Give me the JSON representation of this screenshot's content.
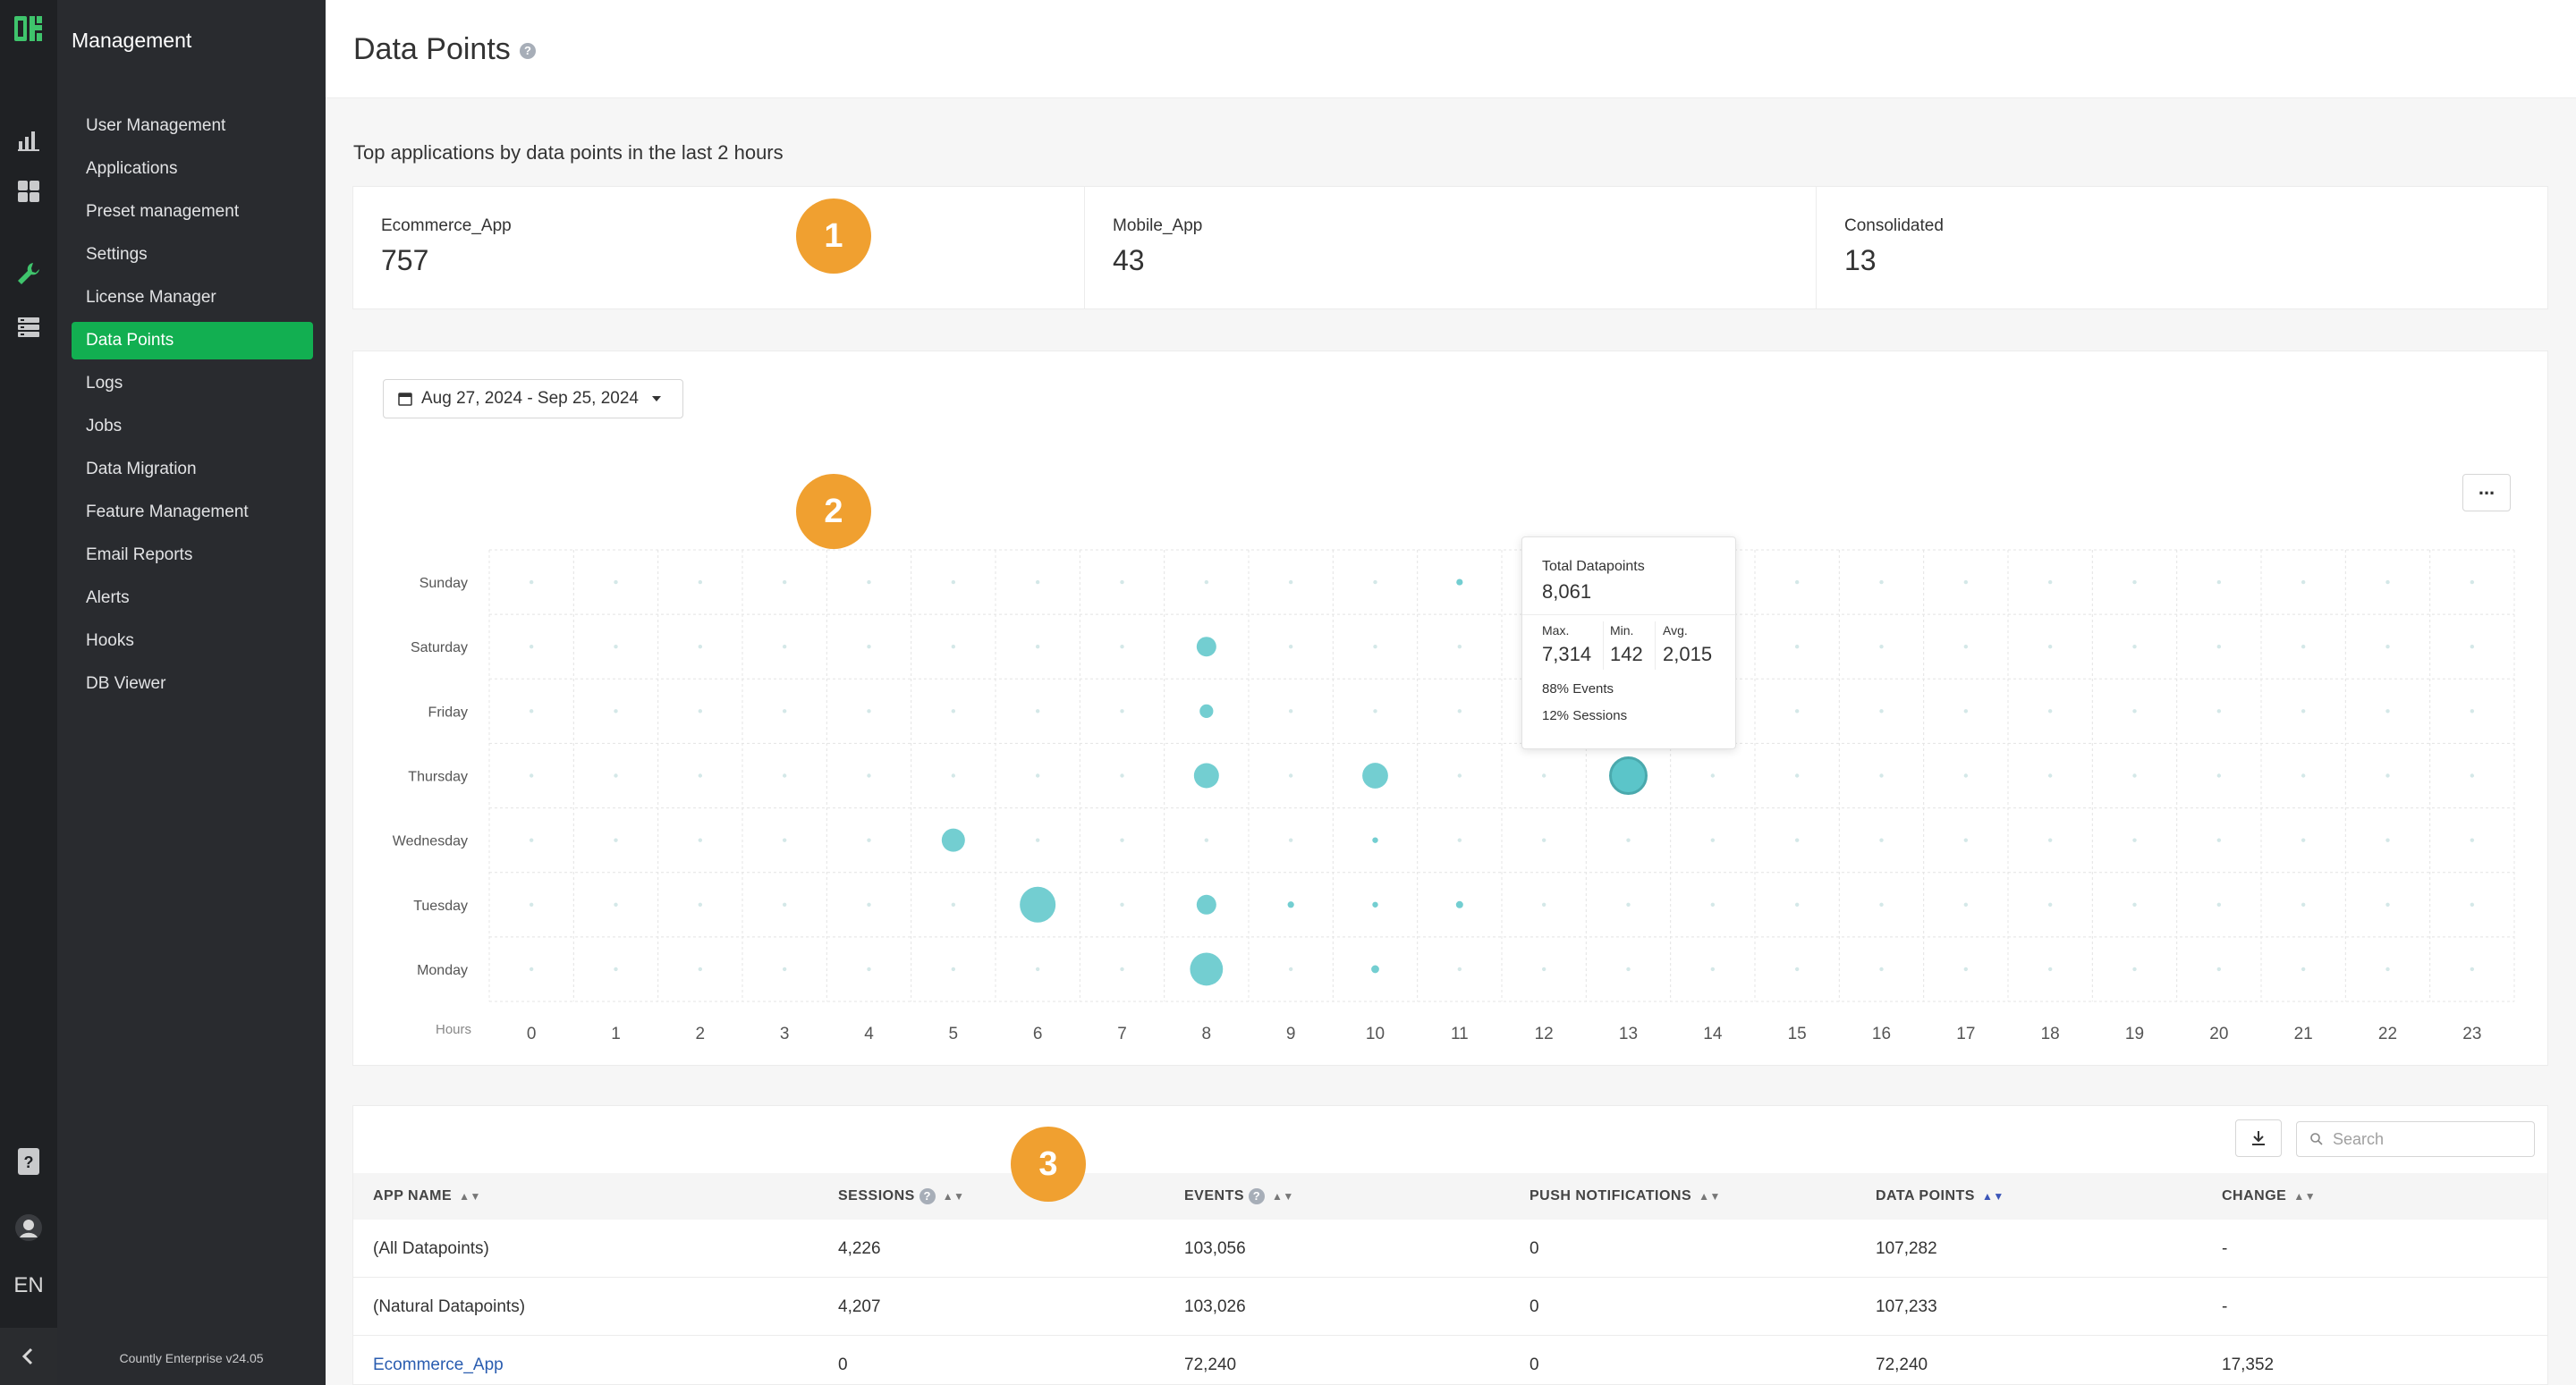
{
  "sidebar": {
    "title": "Management",
    "items": [
      {
        "label": "User Management",
        "active": false
      },
      {
        "label": "Applications",
        "active": false
      },
      {
        "label": "Preset management",
        "active": false
      },
      {
        "label": "Settings",
        "active": false
      },
      {
        "label": "License Manager",
        "active": false
      },
      {
        "label": "Data Points",
        "active": true
      },
      {
        "label": "Logs",
        "active": false
      },
      {
        "label": "Jobs",
        "active": false
      },
      {
        "label": "Data Migration",
        "active": false
      },
      {
        "label": "Feature Management",
        "active": false
      },
      {
        "label": "Email Reports",
        "active": false
      },
      {
        "label": "Alerts",
        "active": false
      },
      {
        "label": "Hooks",
        "active": false
      },
      {
        "label": "DB Viewer",
        "active": false
      }
    ],
    "version": "Countly Enterprise v24.05"
  },
  "rail": {
    "language": "EN",
    "icons": [
      "countly-logo-icon",
      "analytics-icon",
      "dashboards-icon",
      "management-wrench-icon",
      "data-manager-icon",
      "help-book-icon",
      "user-avatar-icon",
      "collapse-chevron-icon"
    ]
  },
  "header": {
    "title": "Data Points"
  },
  "top_apps": {
    "subtitle": "Top applications by data points in the last 2 hours",
    "cards": [
      {
        "label": "Ecommerce_App",
        "value": "757"
      },
      {
        "label": "Mobile_App",
        "value": "43"
      },
      {
        "label": "Consolidated",
        "value": "13"
      }
    ]
  },
  "badges": [
    "1",
    "2",
    "3"
  ],
  "date_range": {
    "label": "Aug 27, 2024 - Sep 25, 2024"
  },
  "chart_data": {
    "type": "scatter",
    "subtype": "punchcard",
    "x_label": "Hours",
    "x_categories": [
      "0",
      "1",
      "2",
      "3",
      "4",
      "5",
      "6",
      "7",
      "8",
      "9",
      "10",
      "11",
      "12",
      "13",
      "14",
      "15",
      "16",
      "17",
      "18",
      "19",
      "20",
      "21",
      "22",
      "23"
    ],
    "y_categories": [
      "Sunday",
      "Saturday",
      "Friday",
      "Thursday",
      "Wednesday",
      "Tuesday",
      "Monday"
    ],
    "bubble_color": "#5bc5c9",
    "points": [
      {
        "day": "Sunday",
        "hour": 11,
        "size": 0.18
      },
      {
        "day": "Saturday",
        "hour": 8,
        "size": 0.55
      },
      {
        "day": "Friday",
        "hour": 8,
        "size": 0.38
      },
      {
        "day": "Thursday",
        "hour": 8,
        "size": 0.7
      },
      {
        "day": "Thursday",
        "hour": 10,
        "size": 0.72
      },
      {
        "day": "Thursday",
        "hour": 13,
        "size": 1.0
      },
      {
        "day": "Wednesday",
        "hour": 5,
        "size": 0.65
      },
      {
        "day": "Wednesday",
        "hour": 10,
        "size": 0.16
      },
      {
        "day": "Tuesday",
        "hour": 6,
        "size": 1.0
      },
      {
        "day": "Tuesday",
        "hour": 8,
        "size": 0.55
      },
      {
        "day": "Tuesday",
        "hour": 9,
        "size": 0.18
      },
      {
        "day": "Tuesday",
        "hour": 10,
        "size": 0.16
      },
      {
        "day": "Tuesday",
        "hour": 11,
        "size": 0.2
      },
      {
        "day": "Monday",
        "hour": 8,
        "size": 0.92
      },
      {
        "day": "Monday",
        "hour": 10,
        "size": 0.22
      }
    ],
    "tooltip": {
      "day": "Thursday",
      "hour": 13,
      "title": "Total Datapoints",
      "total": "8,061",
      "max_label": "Max.",
      "max": "7,314",
      "min_label": "Min.",
      "min": "142",
      "avg_label": "Avg.",
      "avg": "2,015",
      "events_pct": "88%",
      "events_label": "Events",
      "sessions_pct": "12%",
      "sessions_label": "Sessions"
    }
  },
  "table": {
    "search_placeholder": "Search",
    "columns": [
      "APP NAME",
      "SESSIONS",
      "EVENTS",
      "PUSH NOTIFICATIONS",
      "DATA POINTS",
      "CHANGE"
    ],
    "rows": [
      {
        "app": "(All Datapoints)",
        "sessions": "4,226",
        "events": "103,056",
        "push": "0",
        "data_points": "107,282",
        "change": "-",
        "link": false
      },
      {
        "app": "(Natural Datapoints)",
        "sessions": "4,207",
        "events": "103,026",
        "push": "0",
        "data_points": "107,233",
        "change": "-",
        "link": false
      },
      {
        "app": "Ecommerce_App",
        "sessions": "0",
        "events": "72,240",
        "push": "0",
        "data_points": "72,240",
        "change": "17,352",
        "link": true
      }
    ]
  }
}
